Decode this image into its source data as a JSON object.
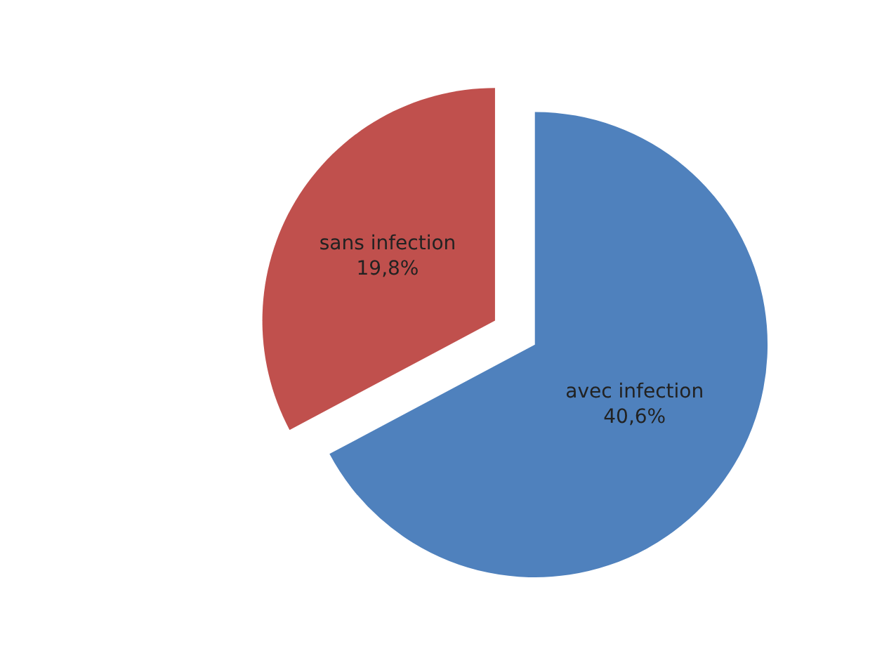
{
  "chart_data": {
    "type": "pie",
    "categories": [
      "avec infection",
      "sans infection"
    ],
    "values": [
      40.6,
      19.8
    ],
    "value_labels": [
      "40,6%",
      "19,8%"
    ],
    "colors": [
      "#4f81bd",
      "#c0504d"
    ],
    "legend": false
  }
}
